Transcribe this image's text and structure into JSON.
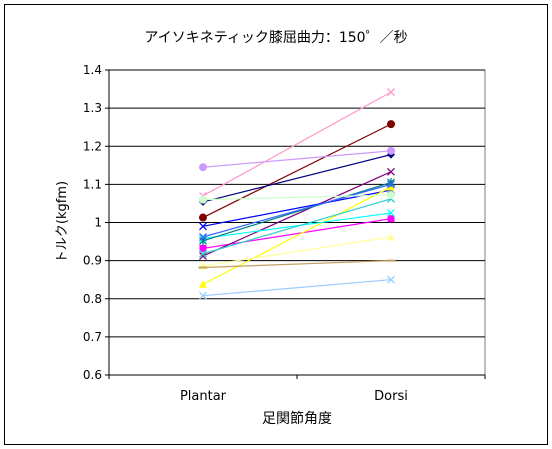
{
  "chart_data": {
    "type": "line",
    "title": "アイソキネティック膝屈曲力：150゜／秒",
    "xlabel": "足関節角度",
    "ylabel": "トルク(kgfm)",
    "categories": [
      "Plantar",
      "Dorsi"
    ],
    "ylim": [
      0.6,
      1.4
    ],
    "yticks": [
      0.6,
      0.7,
      0.8,
      0.9,
      1.0,
      1.1,
      1.2,
      1.3,
      1.4
    ],
    "ytick_labels": [
      "0.6",
      "0.7",
      "0.8",
      "0.9",
      "1",
      "1.1",
      "1.2",
      "1.3",
      "1.4"
    ],
    "grid": true,
    "legend": "none",
    "series": [
      {
        "values": [
          1.013,
          1.258
        ],
        "color": "#800000",
        "marker": "circle"
      },
      {
        "values": [
          1.054,
          1.178
        ],
        "color": "#000080",
        "marker": "diamond"
      },
      {
        "values": [
          1.145,
          1.188
        ],
        "color": "#cc99ff",
        "marker": "circle"
      },
      {
        "values": [
          1.07,
          1.342
        ],
        "color": "#ff99cc",
        "marker": "x"
      },
      {
        "values": [
          0.932,
          1.01
        ],
        "color": "#ff00ff",
        "marker": "square"
      },
      {
        "values": [
          0.912,
          1.133
        ],
        "color": "#800080",
        "marker": "x"
      },
      {
        "values": [
          0.99,
          1.085
        ],
        "color": "#0000ff",
        "marker": "x"
      },
      {
        "values": [
          0.838,
          1.093
        ],
        "color": "#ffff00",
        "marker": "triangle"
      },
      {
        "values": [
          0.886,
          0.962
        ],
        "color": "#ffff99",
        "marker": "triangle"
      },
      {
        "values": [
          0.882,
          0.9
        ],
        "color": "#c0a060",
        "marker": "dash"
      },
      {
        "values": [
          0.808,
          0.85
        ],
        "color": "#99ccff",
        "marker": "x"
      },
      {
        "values": [
          0.958,
          1.025
        ],
        "color": "#00ffff",
        "marker": "x"
      },
      {
        "values": [
          0.952,
          1.105
        ],
        "color": "#008080",
        "marker": "star"
      },
      {
        "values": [
          0.918,
          1.062
        ],
        "color": "#33cccc",
        "marker": "x"
      },
      {
        "values": [
          0.962,
          1.1
        ],
        "color": "#3366ff",
        "marker": "x"
      },
      {
        "values": [
          1.06,
          1.072
        ],
        "color": "#ccffcc",
        "marker": "circle"
      }
    ]
  }
}
